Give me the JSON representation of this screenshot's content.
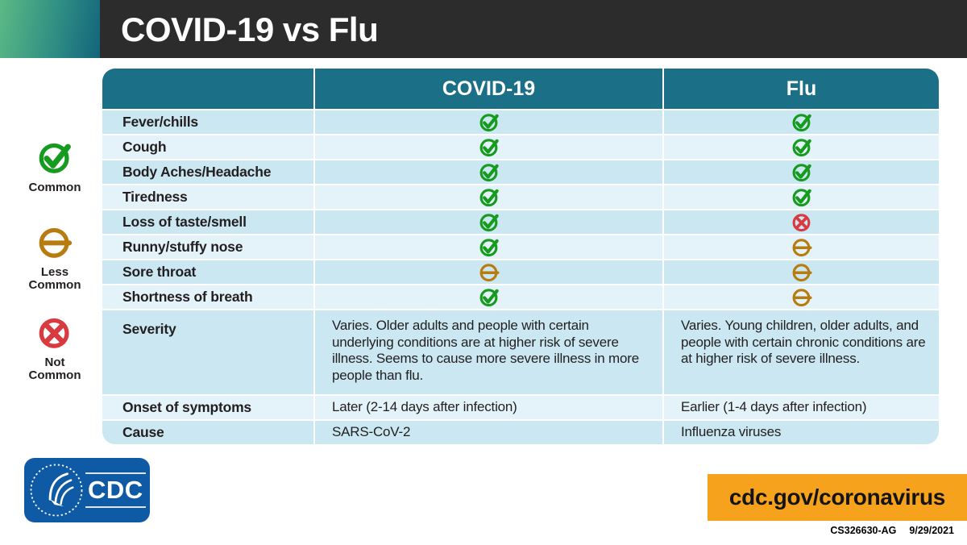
{
  "header": {
    "title": "COVID-19 vs Flu"
  },
  "colors": {
    "topbar": "#2d2c2d",
    "gradient_start": "#5cb985",
    "gradient_end": "#14647c",
    "table_header": "#1b6f87",
    "row_dark": "#cae7f2",
    "row_light": "#e4f3fa",
    "url_box": "#f6a21d",
    "cdc_logo_blue": "#0f5aa5"
  },
  "statuses": {
    "common": {
      "icon": "check-circle-icon",
      "color": "#169b1e"
    },
    "less-common": {
      "icon": "minus-circle-icon",
      "color": "#b87b10"
    },
    "not-common": {
      "icon": "x-circle-icon",
      "color": "#d93a40"
    }
  },
  "legend": [
    {
      "key": "common",
      "label": "Common"
    },
    {
      "key": "less-common",
      "label": "Less\nCommon"
    },
    {
      "key": "not-common",
      "label": "Not\nCommon"
    }
  ],
  "table": {
    "columns": [
      "COVID-19",
      "Flu"
    ],
    "symptom_rows": [
      {
        "label": "Fever/chills",
        "covid": "common",
        "flu": "common"
      },
      {
        "label": "Cough",
        "covid": "common",
        "flu": "common"
      },
      {
        "label": "Body Aches/Headache",
        "covid": "common",
        "flu": "common"
      },
      {
        "label": "Tiredness",
        "covid": "common",
        "flu": "common"
      },
      {
        "label": "Loss of taste/smell",
        "covid": "common",
        "flu": "not-common"
      },
      {
        "label": "Runny/stuffy nose",
        "covid": "common",
        "flu": "less-common"
      },
      {
        "label": "Sore throat",
        "covid": "less-common",
        "flu": "less-common"
      },
      {
        "label": "Shortness of breath",
        "covid": "common",
        "flu": "less-common"
      }
    ],
    "text_rows": [
      {
        "label": "Severity",
        "covid": "Varies. Older adults and people with certain underlying conditions are at higher risk of severe illness. Seems to cause more severe illness in more people than flu.",
        "flu": "Varies. Young children, older adults, and people with certain chronic conditions are at higher risk of severe illness."
      },
      {
        "label": "Onset of symptoms",
        "covid": "Later (2-14 days after infection)",
        "flu": "Earlier (1-4 days after infection)"
      },
      {
        "label": "Cause",
        "covid": "SARS-CoV-2",
        "flu": "Influenza viruses"
      }
    ]
  },
  "footer": {
    "logo_text": "CDC",
    "url": "cdc.gov/coronavirus",
    "doc_id": "CS326630-AG",
    "date": "9/29/2021"
  }
}
